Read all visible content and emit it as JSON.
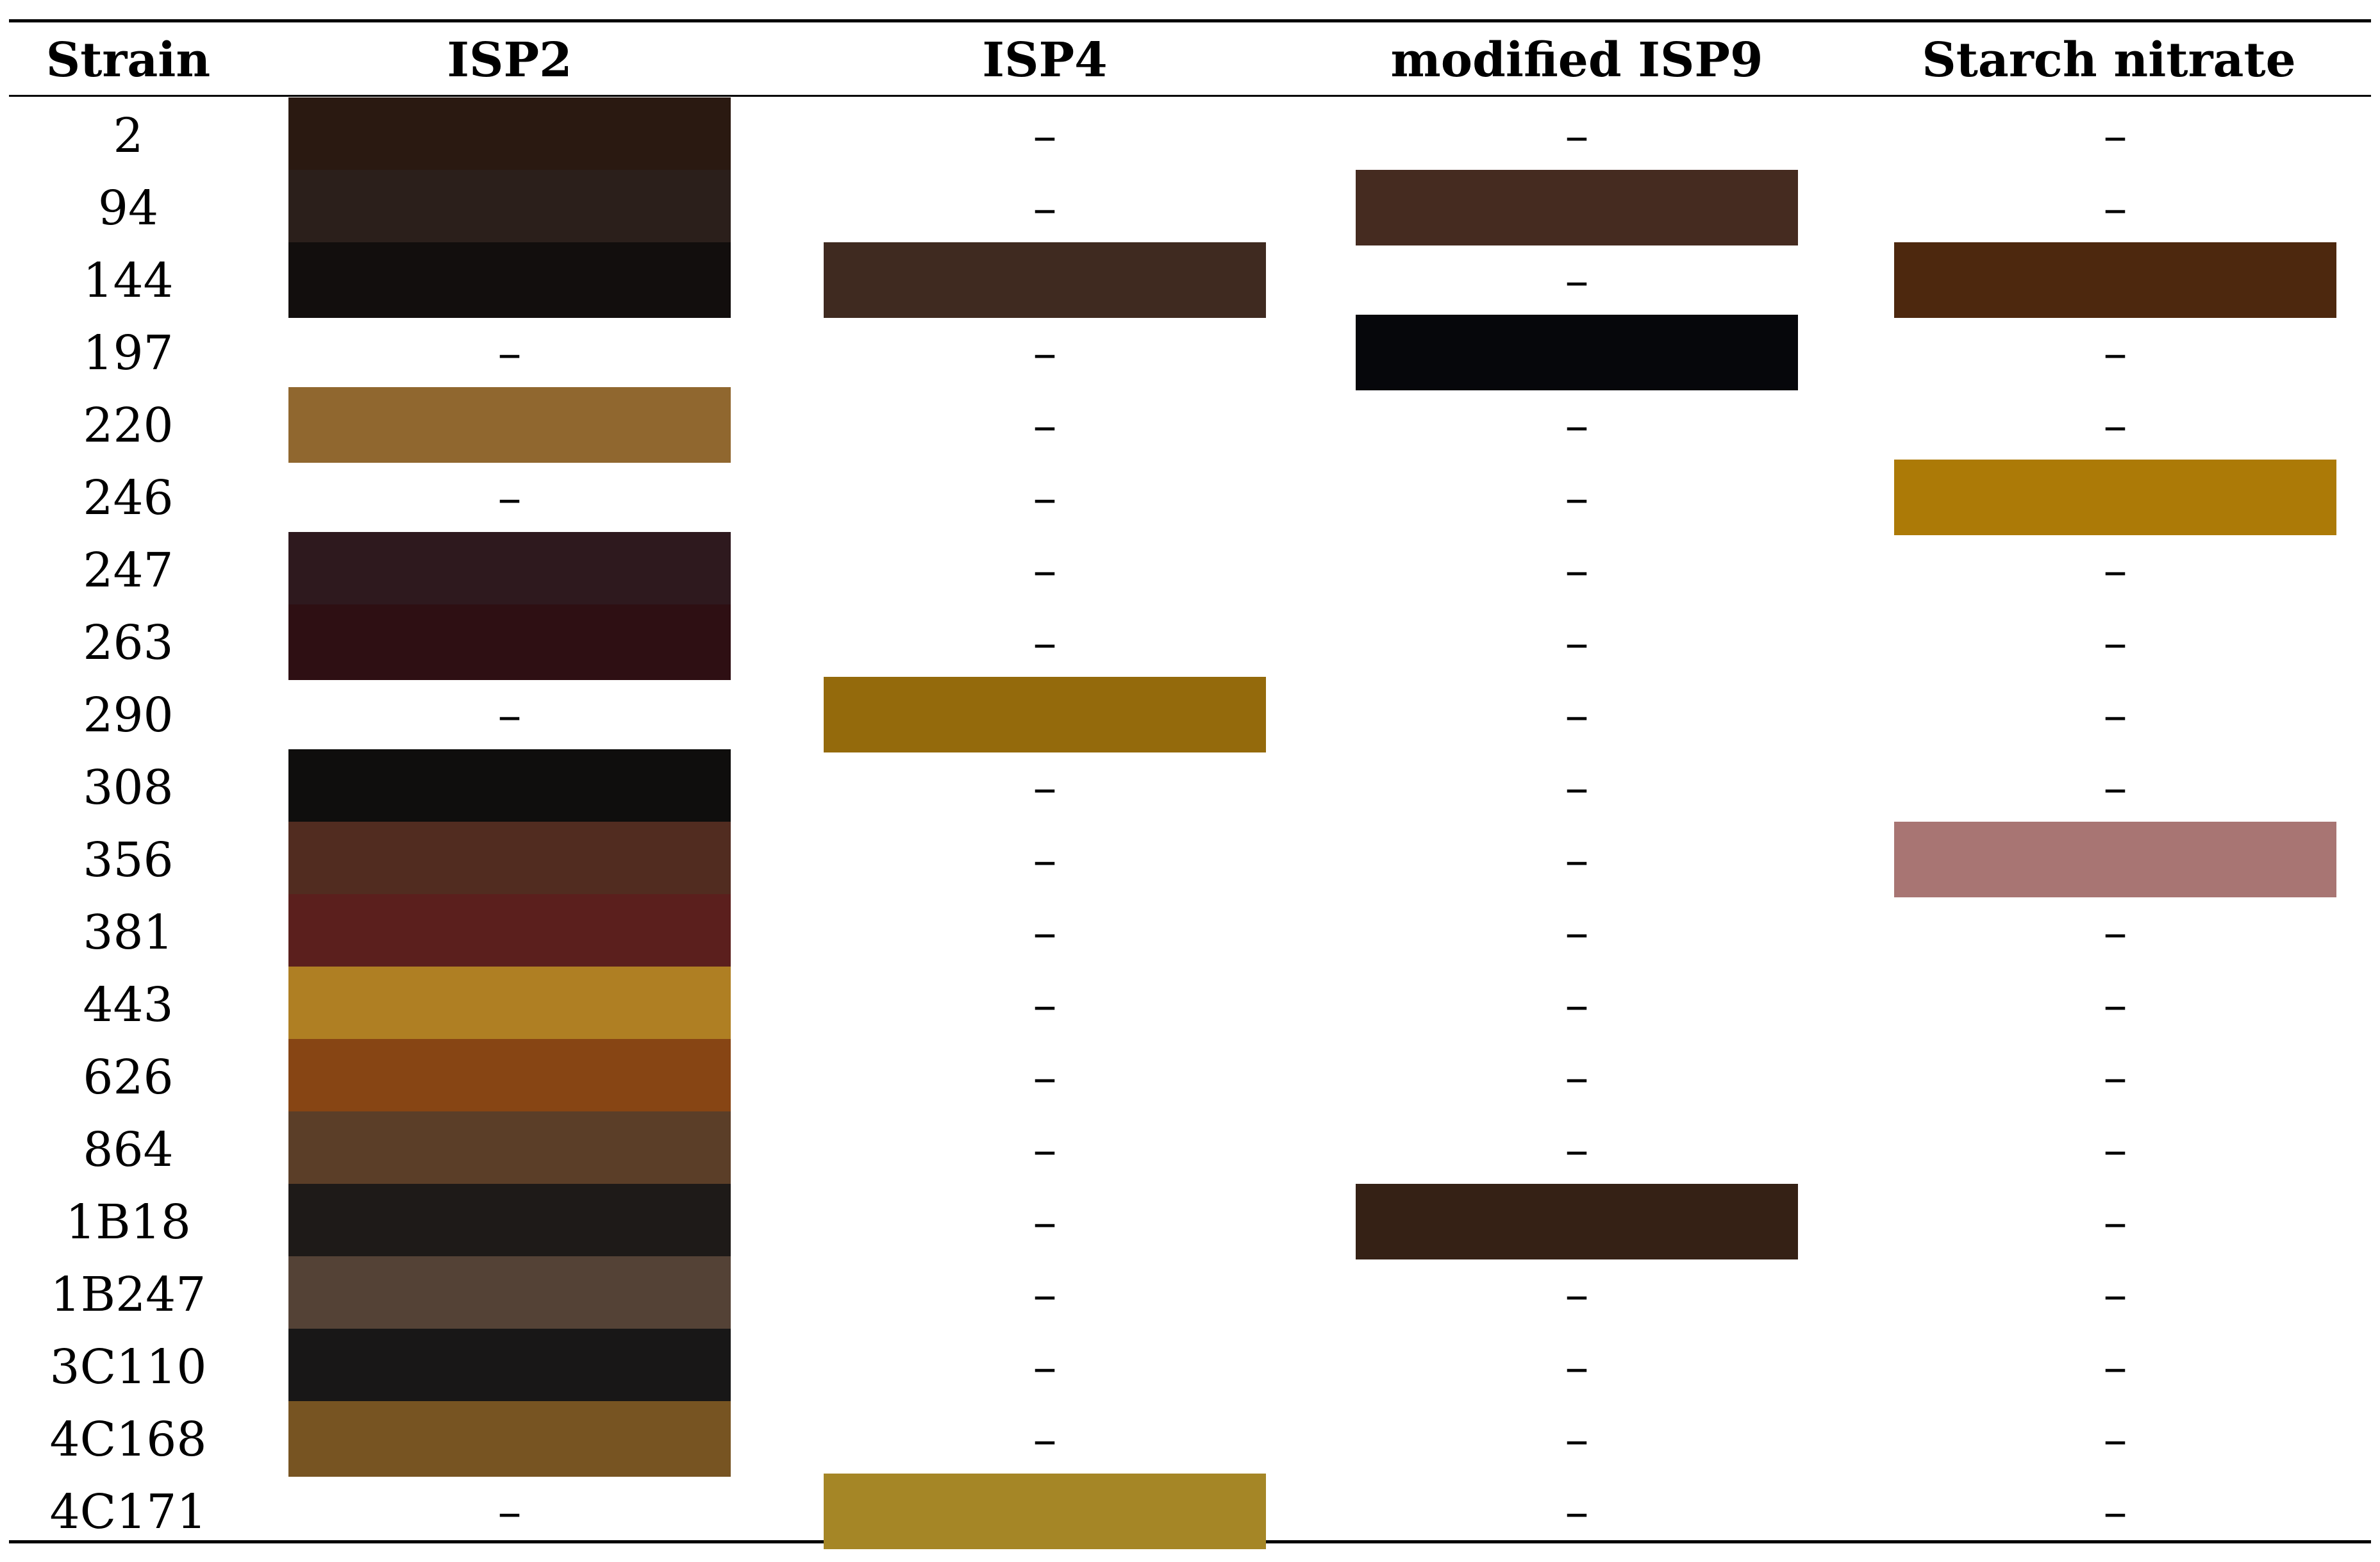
{
  "table": {
    "columns": [
      "Strain",
      "ISP2",
      "ISP4",
      "modified ISP9",
      "Starch nitrate"
    ],
    "empty_mark": "–",
    "rows": [
      {
        "strain": "2",
        "cells": [
          "#2a1911",
          null,
          null,
          null
        ]
      },
      {
        "strain": "94",
        "cells": [
          "#2b1f1b",
          null,
          "#452b20",
          null
        ]
      },
      {
        "strain": "144",
        "cells": [
          "#120e0d",
          "#3f2a20",
          null,
          "#4d280e"
        ]
      },
      {
        "strain": "197",
        "cells": [
          null,
          null,
          "#06070b",
          null
        ]
      },
      {
        "strain": "220",
        "cells": [
          "#90672f",
          null,
          null,
          null
        ]
      },
      {
        "strain": "246",
        "cells": [
          null,
          null,
          null,
          "#ac7a07"
        ]
      },
      {
        "strain": "247",
        "cells": [
          "#2e191e",
          null,
          null,
          null
        ]
      },
      {
        "strain": "263",
        "cells": [
          "#2e0f13",
          null,
          null,
          null
        ]
      },
      {
        "strain": "290",
        "cells": [
          null,
          "#946a0c",
          null,
          null
        ]
      },
      {
        "strain": "308",
        "cells": [
          "#0f0e0d",
          null,
          null,
          null
        ]
      },
      {
        "strain": "356",
        "cells": [
          "#512c20",
          null,
          null,
          "#a87573"
        ]
      },
      {
        "strain": "381",
        "cells": [
          "#5b1f1d",
          null,
          null,
          null
        ]
      },
      {
        "strain": "443",
        "cells": [
          "#af7f23",
          null,
          null,
          null
        ]
      },
      {
        "strain": "626",
        "cells": [
          "#874514",
          null,
          null,
          null
        ]
      },
      {
        "strain": "864",
        "cells": [
          "#5b3e28",
          null,
          null,
          null
        ]
      },
      {
        "strain": "1B18",
        "cells": [
          "#1e1a18",
          null,
          "#352115",
          null
        ]
      },
      {
        "strain": "1B247",
        "cells": [
          "#544236",
          null,
          null,
          null
        ]
      },
      {
        "strain": "3C110",
        "cells": [
          "#181717",
          null,
          null,
          null
        ]
      },
      {
        "strain": "4C168",
        "cells": [
          "#775422",
          null,
          null,
          null
        ]
      },
      {
        "strain": "4C171",
        "cells": [
          null,
          "#a58626",
          null,
          null
        ]
      }
    ]
  }
}
